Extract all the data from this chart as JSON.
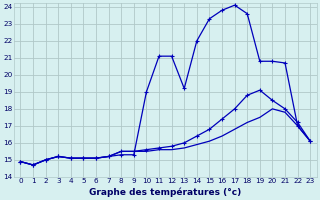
{
  "title": "Graphe des températures (°c)",
  "bg_color": "#d7f0f0",
  "grid_color": "#b0c8c8",
  "line_color": "#0000bb",
  "xlim": [
    -0.5,
    23.5
  ],
  "ylim": [
    14,
    24.2
  ],
  "xticks": [
    0,
    1,
    2,
    3,
    4,
    5,
    6,
    7,
    8,
    9,
    10,
    11,
    12,
    13,
    14,
    15,
    16,
    17,
    18,
    19,
    20,
    21,
    22,
    23
  ],
  "yticks": [
    14,
    15,
    16,
    17,
    18,
    19,
    20,
    21,
    22,
    23,
    24
  ],
  "series1_x": [
    0,
    1,
    2,
    3,
    4,
    5,
    6,
    7,
    8,
    9,
    10,
    11,
    12,
    13,
    14,
    15,
    16,
    17,
    18,
    19,
    20,
    21,
    22,
    23
  ],
  "series1_y": [
    14.9,
    14.7,
    15.0,
    15.2,
    15.1,
    15.1,
    15.1,
    15.2,
    15.3,
    15.3,
    19.0,
    21.1,
    21.1,
    19.2,
    22.0,
    23.3,
    23.8,
    24.1,
    23.6,
    20.8,
    20.8,
    20.7,
    17.0,
    16.1
  ],
  "series2_x": [
    0,
    1,
    2,
    3,
    4,
    5,
    6,
    7,
    8,
    9,
    10,
    11,
    12,
    13,
    14,
    15,
    16,
    17,
    18,
    19,
    20,
    21,
    22,
    23
  ],
  "series2_y": [
    14.9,
    14.7,
    15.0,
    15.2,
    15.1,
    15.1,
    15.1,
    15.2,
    15.5,
    15.5,
    15.6,
    15.7,
    15.8,
    16.0,
    16.4,
    16.8,
    17.4,
    18.0,
    18.8,
    19.1,
    18.5,
    18.0,
    17.2,
    16.1
  ],
  "series3_x": [
    0,
    1,
    2,
    3,
    4,
    5,
    6,
    7,
    8,
    9,
    10,
    11,
    12,
    13,
    14,
    15,
    16,
    17,
    18,
    19,
    20,
    21,
    22,
    23
  ],
  "series3_y": [
    14.9,
    14.7,
    15.0,
    15.2,
    15.1,
    15.1,
    15.1,
    15.2,
    15.5,
    15.5,
    15.5,
    15.6,
    15.6,
    15.7,
    15.9,
    16.1,
    16.4,
    16.8,
    17.2,
    17.5,
    18.0,
    17.8,
    17.0,
    16.1
  ]
}
